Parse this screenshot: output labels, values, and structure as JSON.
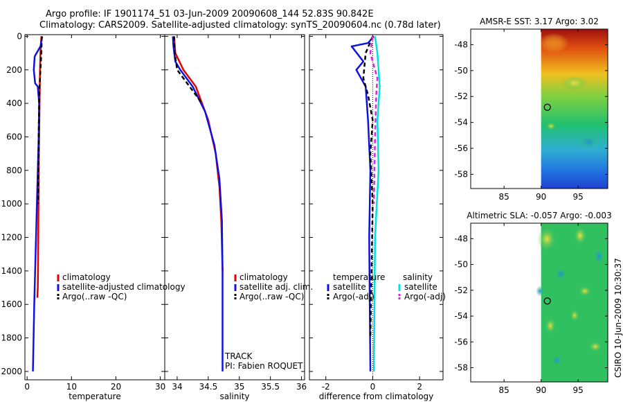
{
  "header": {
    "line1": "Argo profile: IF 1901174_51 03-Jun-2009 20090608_144 52.83S 90.842E",
    "line2": "Climatology: CARS2009. Satellite-adjusted climatology: synTS_20090604.nc (0.78d later)"
  },
  "side_label": "CSIRO 10-Jun-2009 10:30:37",
  "track": {
    "label": "TRACK",
    "pi": "PI: Fabien ROQUET"
  },
  "colors": {
    "climatology": "#e00000",
    "satellite": "#1010e0",
    "argo": "#000000",
    "sal_satellite": "#00e0e0",
    "sal_argo": "#e020e0"
  },
  "chart_data": [
    {
      "type": "line",
      "xlabel": "temperature",
      "ylabel": "",
      "xlim": [
        -0.5,
        31
      ],
      "ylim": [
        2050,
        -10
      ],
      "xticks": [
        0,
        10,
        20,
        30
      ],
      "yticks": [
        0,
        200,
        400,
        600,
        800,
        1000,
        1200,
        1400,
        1600,
        1800,
        2000
      ],
      "legend": [
        "climatology",
        "satellite-adjusted climatology",
        "Argo(..raw -QC)"
      ],
      "legend_placement": "center-right",
      "series": [
        {
          "name": "climatology",
          "x": [
            3.2,
            3.0,
            2.9,
            2.8,
            2.7,
            2.6,
            2.55,
            2.5,
            2.45,
            2.4,
            2.3
          ],
          "y": [
            0,
            100,
            200,
            400,
            600,
            800,
            1000,
            1200,
            1400,
            1500,
            1560
          ]
        },
        {
          "name": "satellite-adjusted climatology",
          "x": [
            3.4,
            3.0,
            1.7,
            1.5,
            1.8,
            2.4,
            2.7,
            2.6,
            2.4,
            2.0,
            1.6,
            1.3
          ],
          "y": [
            0,
            60,
            120,
            200,
            280,
            300,
            400,
            600,
            800,
            1200,
            1600,
            2000
          ]
        },
        {
          "name": "Argo(..raw -QC)",
          "x": [
            3.3,
            3.2,
            3.0,
            2.8,
            2.7,
            2.65,
            2.6,
            2.55,
            2.5
          ],
          "y": [
            0,
            100,
            200,
            300,
            400,
            500,
            600,
            800,
            1000
          ]
        }
      ]
    },
    {
      "type": "line",
      "xlabel": "salinity",
      "xlim": [
        33.8,
        36.05
      ],
      "ylim": [
        2050,
        -10
      ],
      "xticks": [
        34,
        34.5,
        35,
        35.5,
        36
      ],
      "legend": [
        "climatology",
        "satellite adj. clim.",
        "Argo(..raw -QC)"
      ],
      "legend_placement": "center-right",
      "series": [
        {
          "name": "climatology",
          "x": [
            33.95,
            33.97,
            34.1,
            34.3,
            34.5,
            34.62,
            34.68,
            34.71,
            34.73
          ],
          "y": [
            0,
            100,
            200,
            300,
            500,
            700,
            900,
            1100,
            1400
          ]
        },
        {
          "name": "satellite adj. clim.",
          "x": [
            33.93,
            33.94,
            33.97,
            34.05,
            34.25,
            34.45,
            34.6,
            34.68,
            34.72,
            34.73,
            34.73
          ],
          "y": [
            0,
            60,
            150,
            200,
            300,
            450,
            650,
            850,
            1100,
            1400,
            2000
          ]
        },
        {
          "name": "Argo(..raw -QC)",
          "x": [
            33.95,
            33.96,
            34.0,
            34.2,
            34.4
          ],
          "y": [
            0,
            100,
            200,
            300,
            400
          ]
        }
      ]
    },
    {
      "type": "line",
      "xlabel": "difference from climatology",
      "xlim": [
        -2.7,
        3.0
      ],
      "ylim": [
        2050,
        -10
      ],
      "xticks": [
        -2,
        0,
        2
      ],
      "legend_groups": [
        {
          "title": "temperature",
          "items": [
            "satellite",
            "Argo(-adj)"
          ]
        },
        {
          "title": "salinity",
          "items": [
            "satellite",
            "Argo(-adj)"
          ]
        }
      ],
      "legend_placement": "center",
      "series": [
        {
          "name": "temperature satellite",
          "x": [
            0.05,
            -0.2,
            -0.9,
            -0.4,
            -0.7,
            -0.3,
            -0.2,
            -0.1,
            -0.15,
            -0.1
          ],
          "y": [
            0,
            40,
            60,
            150,
            200,
            300,
            500,
            800,
            1200,
            2000
          ]
        },
        {
          "name": "temperature Argo(-adj)",
          "x": [
            0.0,
            -0.3,
            -0.4,
            -0.2,
            0.0,
            -0.1,
            0.0,
            -0.1
          ],
          "y": [
            0,
            100,
            250,
            350,
            500,
            700,
            1000,
            1800
          ]
        },
        {
          "name": "salinity satellite",
          "x": [
            0.1,
            0.2,
            0.3,
            0.2,
            0.25,
            0.1,
            0.05
          ],
          "y": [
            0,
            100,
            300,
            500,
            800,
            1200,
            2000
          ]
        },
        {
          "name": "salinity Argo(-adj)",
          "x": [
            0.0,
            -0.1,
            0.2,
            0.15,
            0.1,
            0.05
          ],
          "y": [
            0,
            100,
            250,
            350,
            600,
            1000
          ]
        }
      ]
    },
    {
      "type": "heatmap",
      "title": "AMSR-E SST: 3.17 Argo: 3.02",
      "xlim": [
        80.5,
        99
      ],
      "ylim": [
        -59.1,
        -46.8
      ],
      "xticks": [
        85,
        90,
        95
      ],
      "yticks": [
        -48,
        -50,
        -52,
        -54,
        -56,
        -58
      ],
      "profile_location": {
        "lon": 90.842,
        "lat": -52.83
      }
    },
    {
      "type": "heatmap",
      "title": "Altimetric SLA: -0.057 Argo: -0.003",
      "xlim": [
        80.5,
        99
      ],
      "ylim": [
        -59.1,
        -46.8
      ],
      "xticks": [
        85,
        90,
        95
      ],
      "yticks": [
        -48,
        -50,
        -52,
        -54,
        -56,
        -58
      ],
      "profile_location": {
        "lon": 90.842,
        "lat": -52.83
      }
    }
  ]
}
